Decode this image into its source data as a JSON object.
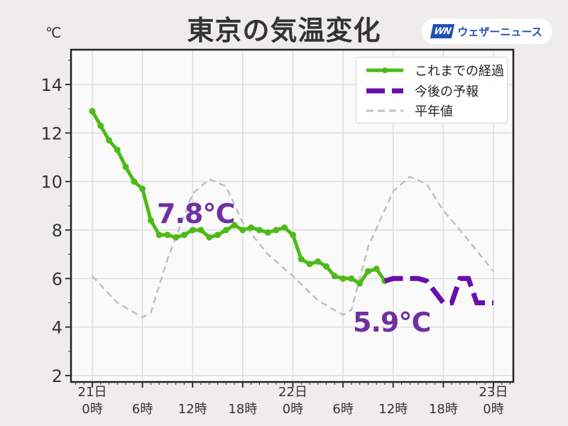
{
  "header": {
    "title": "東京の気温変化",
    "brand": {
      "logo": "WN",
      "name": "ウェザーニュース",
      "color": "#1f4fb7"
    }
  },
  "axis": {
    "y_unit": "℃",
    "y_ticks": [
      "2",
      "4",
      "6",
      "8",
      "10",
      "12",
      "14"
    ],
    "x_ticks": [
      {
        "day": "21日",
        "hour": "0時"
      },
      {
        "day": "",
        "hour": "6時"
      },
      {
        "day": "",
        "hour": "12時"
      },
      {
        "day": "",
        "hour": "18時"
      },
      {
        "day": "22日",
        "hour": "0時"
      },
      {
        "day": "",
        "hour": "6時"
      },
      {
        "day": "",
        "hour": "12時"
      },
      {
        "day": "",
        "hour": "18時"
      },
      {
        "day": "23日",
        "hour": "0時"
      }
    ]
  },
  "legend": {
    "observed": "これまでの経過",
    "forecast": "今後の予報",
    "normal": "平年値"
  },
  "annotations": {
    "max_label": "7.8℃",
    "min_label": "5.9℃"
  },
  "colors": {
    "observed": "#4cbb17",
    "forecast": "#6a0dad",
    "normal": "#c0c0c0",
    "annotation": "#7030a0",
    "grid": "#dddddd",
    "plot_bg": "#fbfafb"
  },
  "chart_data": {
    "type": "line",
    "title": "東京の気温変化",
    "xlabel": "",
    "ylabel": "℃",
    "ylim": [
      2,
      15.5
    ],
    "xlim_hours": [
      -2,
      50
    ],
    "x_tick_hours": [
      0,
      6,
      12,
      18,
      24,
      30,
      36,
      42,
      48
    ],
    "x_tick_labels": [
      "21日 0時",
      "6時",
      "12時",
      "18時",
      "22日 0時",
      "6時",
      "12時",
      "18時",
      "23日 0時"
    ],
    "y_ticks": [
      2,
      4,
      6,
      8,
      10,
      12,
      14
    ],
    "grid": true,
    "legend_position": "upper right",
    "series": [
      {
        "name": "これまでの経過",
        "style": "solid-with-markers",
        "x_hours": [
          0,
          1,
          2,
          3,
          4,
          5,
          6,
          7,
          8,
          9,
          10,
          11,
          12,
          13,
          14,
          15,
          16,
          17,
          18,
          19,
          20,
          21,
          22,
          23,
          24,
          25,
          26,
          27,
          28,
          29,
          30,
          31,
          32,
          33,
          34,
          35
        ],
        "values": [
          12.9,
          12.3,
          11.7,
          11.3,
          10.6,
          10.0,
          9.7,
          8.4,
          7.8,
          7.8,
          7.7,
          7.8,
          8.0,
          8.0,
          7.7,
          7.8,
          8.0,
          8.2,
          8.0,
          8.1,
          8.0,
          7.9,
          8.0,
          8.1,
          7.8,
          6.8,
          6.6,
          6.7,
          6.5,
          6.1,
          6.0,
          6.0,
          5.8,
          6.3,
          6.4,
          5.9
        ]
      },
      {
        "name": "今後の予報",
        "style": "dashed-thick",
        "x_hours": [
          35,
          36,
          39,
          40,
          42,
          43,
          44,
          45,
          46,
          48
        ],
        "values": [
          5.9,
          6.0,
          6.0,
          5.9,
          5.0,
          5.0,
          6.0,
          6.0,
          5.0,
          5.0
        ]
      },
      {
        "name": "平年値",
        "style": "dashed",
        "x_hours": [
          0,
          3,
          6,
          7,
          9,
          12,
          14,
          16,
          18,
          21,
          24,
          27,
          30,
          31,
          33,
          36,
          38,
          40,
          42,
          44,
          48
        ],
        "values": [
          6.1,
          5.0,
          4.4,
          4.6,
          6.8,
          9.5,
          10.1,
          9.8,
          8.3,
          7.0,
          6.1,
          5.1,
          4.5,
          4.7,
          7.3,
          9.6,
          10.2,
          9.9,
          8.8,
          8.0,
          6.3
        ]
      }
    ],
    "annotations": [
      {
        "text": "7.8℃",
        "near_hour": 11,
        "note": "max"
      },
      {
        "text": "5.9℃",
        "near_hour": 35,
        "note": "min"
      }
    ]
  }
}
